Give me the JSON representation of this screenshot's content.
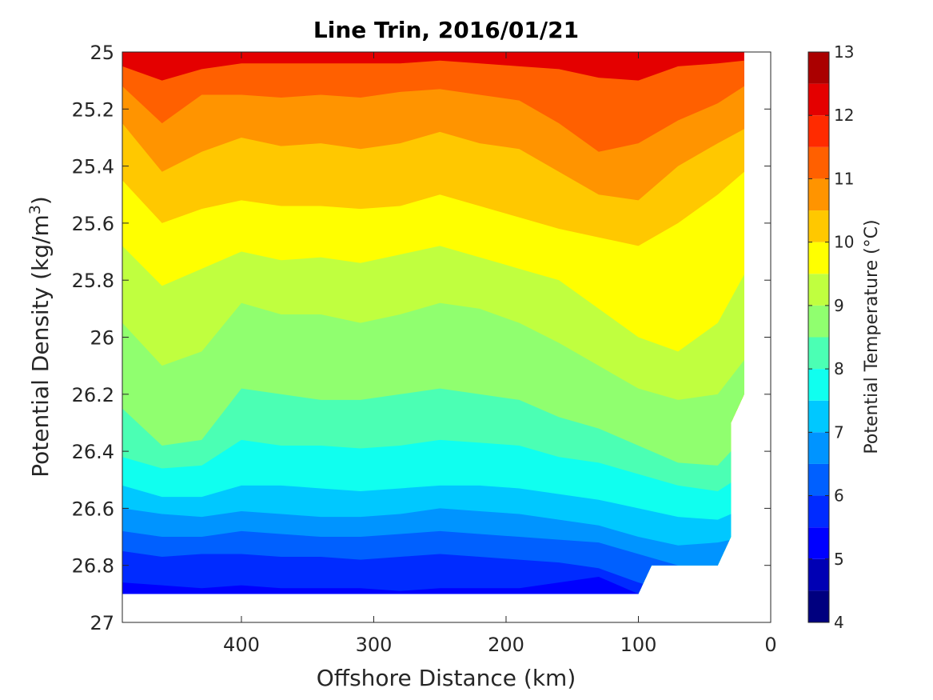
{
  "chart_data": {
    "type": "filled-contour",
    "title": "Line Trin, 2016/01/21",
    "xlabel": "Offshore Distance (km)",
    "ylabel": "Potential Density (kg/m",
    "ylabel_sup": "3",
    "ylabel_close": ")",
    "xlim": [
      490,
      0
    ],
    "x_reversed": true,
    "ylim": [
      25,
      27
    ],
    "y_reversed": true,
    "xticks": [
      400,
      300,
      200,
      100,
      0
    ],
    "xtick_labels": [
      "400",
      "300",
      "200",
      "100",
      "0"
    ],
    "yticks": [
      25,
      25.2,
      25.4,
      25.6,
      25.8,
      26,
      26.2,
      26.4,
      26.6,
      26.8,
      27
    ],
    "ytick_labels": [
      "25",
      "25.2",
      "25.4",
      "25.6",
      "25.8",
      "26",
      "26.2",
      "26.4",
      "26.6",
      "26.8",
      "27"
    ],
    "colorbar": {
      "label": "Potential Temperature (°C)",
      "range": [
        4,
        13
      ],
      "ticks": [
        4,
        5,
        6,
        7,
        8,
        9,
        10,
        11,
        12,
        13
      ],
      "tick_labels": [
        "4",
        "5",
        "6",
        "7",
        "8",
        "9",
        "10",
        "11",
        "12",
        "13"
      ],
      "levels": [
        4,
        4.5,
        5,
        5.5,
        6,
        6.5,
        7,
        7.5,
        8,
        8.5,
        9,
        9.5,
        10,
        10.5,
        11,
        11.5,
        12,
        12.5,
        13
      ],
      "colors": [
        "#00007f",
        "#0000b4",
        "#0000ff",
        "#002bff",
        "#0060ff",
        "#0094ff",
        "#00c8ff",
        "#10ffef",
        "#4bffb4",
        "#90ff6f",
        "#c0ff3f",
        "#ffff00",
        "#ffc800",
        "#ff9400",
        "#ff6000",
        "#ff2b00",
        "#e40000",
        "#aa0000"
      ]
    },
    "x": [
      490,
      460,
      430,
      400,
      370,
      340,
      310,
      280,
      250,
      220,
      190,
      160,
      130,
      100,
      70,
      40,
      20
    ],
    "isopycnals": [
      {
        "temperature": 11.5,
        "depth": [
          25.05,
          25.1,
          25.06,
          25.04,
          25.04,
          25.04,
          25.04,
          25.04,
          25.03,
          25.04,
          25.05,
          25.06,
          25.09,
          25.1,
          25.05,
          25.04,
          25.03
        ]
      },
      {
        "temperature": 11.0,
        "depth": [
          25.12,
          25.25,
          25.15,
          25.15,
          25.16,
          25.15,
          25.16,
          25.14,
          25.13,
          25.15,
          25.17,
          25.25,
          25.35,
          25.32,
          25.24,
          25.18,
          25.12
        ]
      },
      {
        "temperature": 10.5,
        "depth": [
          25.25,
          25.42,
          25.35,
          25.3,
          25.33,
          25.32,
          25.34,
          25.32,
          25.28,
          25.32,
          25.34,
          25.42,
          25.5,
          25.52,
          25.4,
          25.32,
          25.27
        ]
      },
      {
        "temperature": 10.0,
        "depth": [
          25.45,
          25.6,
          25.55,
          25.52,
          25.54,
          25.54,
          25.55,
          25.54,
          25.5,
          25.54,
          25.58,
          25.62,
          25.65,
          25.68,
          25.6,
          25.5,
          25.42
        ]
      },
      {
        "temperature": 9.5,
        "depth": [
          25.68,
          25.82,
          25.76,
          25.7,
          25.73,
          25.72,
          25.74,
          25.71,
          25.68,
          25.72,
          25.76,
          25.8,
          25.9,
          26.0,
          26.05,
          25.95,
          25.78
        ]
      },
      {
        "temperature": 9.0,
        "depth": [
          25.95,
          26.1,
          26.05,
          25.88,
          25.92,
          25.92,
          25.95,
          25.92,
          25.88,
          25.9,
          25.95,
          26.02,
          26.1,
          26.18,
          26.22,
          26.2,
          26.08
        ]
      },
      {
        "temperature": 8.5,
        "depth": [
          26.25,
          26.38,
          26.36,
          26.18,
          26.2,
          26.22,
          26.22,
          26.2,
          26.18,
          26.2,
          26.22,
          26.28,
          26.32,
          26.38,
          26.44,
          26.45,
          26.35
        ]
      },
      {
        "temperature": 8.0,
        "depth": [
          26.42,
          26.46,
          26.45,
          26.36,
          26.38,
          26.38,
          26.39,
          26.38,
          26.36,
          26.37,
          26.38,
          26.42,
          26.44,
          26.48,
          26.52,
          26.54,
          26.48
        ]
      },
      {
        "temperature": 7.5,
        "depth": [
          26.52,
          26.56,
          26.56,
          26.52,
          26.52,
          26.53,
          26.54,
          26.53,
          26.52,
          26.52,
          26.53,
          26.55,
          26.57,
          26.6,
          26.63,
          26.64,
          26.6
        ]
      },
      {
        "temperature": 7.0,
        "depth": [
          26.6,
          26.62,
          26.63,
          26.61,
          26.62,
          26.63,
          26.63,
          26.62,
          26.6,
          26.61,
          26.62,
          26.64,
          26.66,
          26.7,
          26.73,
          26.72,
          26.7
        ]
      },
      {
        "temperature": 6.5,
        "depth": [
          26.68,
          26.7,
          26.7,
          26.68,
          26.69,
          26.7,
          26.7,
          26.69,
          26.68,
          26.69,
          26.7,
          26.71,
          26.72,
          26.76,
          26.8,
          26.8,
          26.76
        ]
      },
      {
        "temperature": 6.0,
        "depth": [
          26.75,
          26.77,
          26.76,
          26.76,
          26.77,
          26.77,
          26.78,
          26.77,
          26.76,
          26.77,
          26.78,
          26.79,
          26.81,
          26.86,
          26.9,
          26.9,
          26.88
        ]
      },
      {
        "temperature": 5.5,
        "depth": [
          26.86,
          26.87,
          26.88,
          26.87,
          26.88,
          26.88,
          26.88,
          26.89,
          26.88,
          26.88,
          26.88,
          26.86,
          26.84,
          26.9,
          26.92,
          26.92,
          26.92
        ]
      }
    ],
    "data_bottom_x": [
      490,
      100,
      90,
      40,
      30,
      30,
      20
    ],
    "data_bottom_depth": [
      26.9,
      26.9,
      26.8,
      26.8,
      26.7,
      26.3,
      26.2
    ]
  }
}
